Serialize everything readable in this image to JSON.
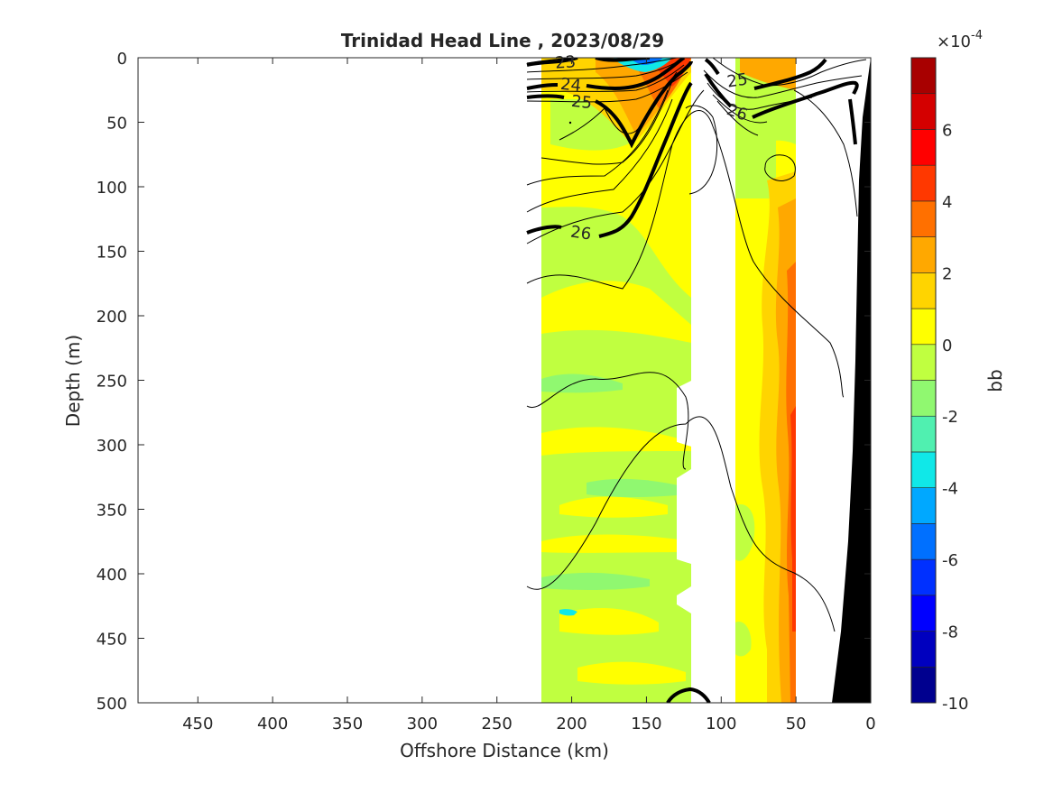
{
  "chart_data": {
    "type": "heatmap",
    "title": "Trinidad Head Line , 2023/08/29",
    "xlabel": "Offshore Distance (km)",
    "ylabel": "Depth (m)",
    "xlim": [
      490,
      0
    ],
    "x_direction": "reversed",
    "ylim": [
      500,
      0
    ],
    "y_direction": "reversed",
    "x_ticks": [
      "450",
      "400",
      "350",
      "300",
      "250",
      "200",
      "150",
      "100",
      "50",
      "0"
    ],
    "y_ticks": [
      "0",
      "50",
      "100",
      "150",
      "200",
      "250",
      "300",
      "350",
      "400",
      "450",
      "500"
    ],
    "colorbar": {
      "label": "bb",
      "exponent_label": "×10",
      "exponent_power": "-4",
      "range": [
        -10,
        8
      ],
      "step": 1,
      "ticks": [
        "6",
        "4",
        "2",
        "0",
        "-2",
        "-4",
        "-6",
        "-8",
        "-10"
      ],
      "colormap": [
        "#00008f",
        "#0000bf",
        "#0000ff",
        "#0030ff",
        "#0070ff",
        "#00a8ff",
        "#10e8e8",
        "#50f0b0",
        "#90f870",
        "#c0ff40",
        "#ffff00",
        "#ffd400",
        "#ffa800",
        "#ff7000",
        "#ff3800",
        "#ff0000",
        "#d40000",
        "#a80000"
      ]
    },
    "fill_bands": [
      {
        "x_range": [
          220,
          120
        ],
        "dominant_value": 0.5,
        "description_value": "mostly 0 to 1 with 1 to 2 patches"
      },
      {
        "x_range": [
          90,
          50
        ],
        "dominant_value": 2.5,
        "description_value": "mostly 1 to 4, up to 6 near x=50"
      }
    ],
    "contours": {
      "labels": [
        "23",
        "24",
        "25",
        "25",
        "26",
        "26"
      ],
      "bold_levels": [
        23,
        24,
        25,
        26
      ]
    },
    "bottom_topography_color": "#000000",
    "grid": false,
    "colors": {
      "contour": "#000000",
      "background": "#ffffff",
      "axis": "#262626"
    }
  }
}
